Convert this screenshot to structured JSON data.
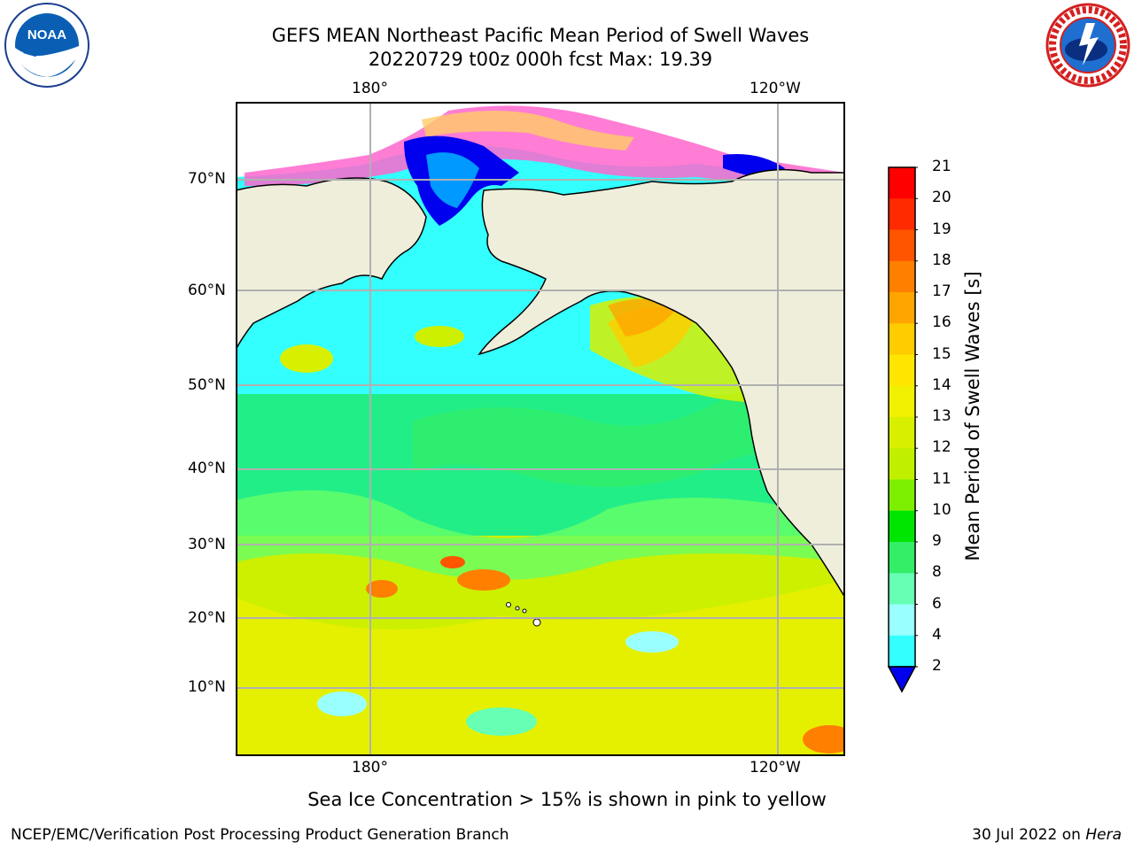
{
  "header": {
    "title_line1": "GEFS MEAN Northeast Pacific Mean Period of Swell Waves",
    "title_line2": "20220729 t00z 000h fcst   Max: 19.39"
  },
  "logos": {
    "left": "NOAA",
    "right": "NATIONAL WEATHER SERVICE"
  },
  "map": {
    "lon_labels": [
      "180°",
      "120°W"
    ],
    "lat_labels": [
      "70°N",
      "60°N",
      "50°N",
      "40°N",
      "30°N",
      "20°N",
      "10°N"
    ]
  },
  "colorbar": {
    "title": "Mean Period of Swell Waves [s]",
    "ticks": [
      "21",
      "20",
      "19",
      "18",
      "17",
      "16",
      "15",
      "14",
      "13",
      "12",
      "11",
      "10",
      "9",
      "8",
      "6",
      "4",
      "2"
    ],
    "colors": [
      "#ff0000",
      "#ff2a00",
      "#ff5500",
      "#ff7f00",
      "#ffa500",
      "#ffcc00",
      "#ffe600",
      "#f0f000",
      "#d8f000",
      "#c0f000",
      "#7cf000",
      "#00e600",
      "#33ee66",
      "#66ffb3",
      "#99ffff",
      "#33ffff",
      "#00e6ff",
      "#0099ff",
      "#0055ff",
      "#0000ee"
    ]
  },
  "caption": "Sea Ice Concentration > 15% is shown in pink to yellow",
  "footer": {
    "left": "NCEP/EMC/Verification Post Processing Product Generation Branch",
    "right_date": "30 Jul 2022 on ",
    "right_machine": "Hera"
  }
}
